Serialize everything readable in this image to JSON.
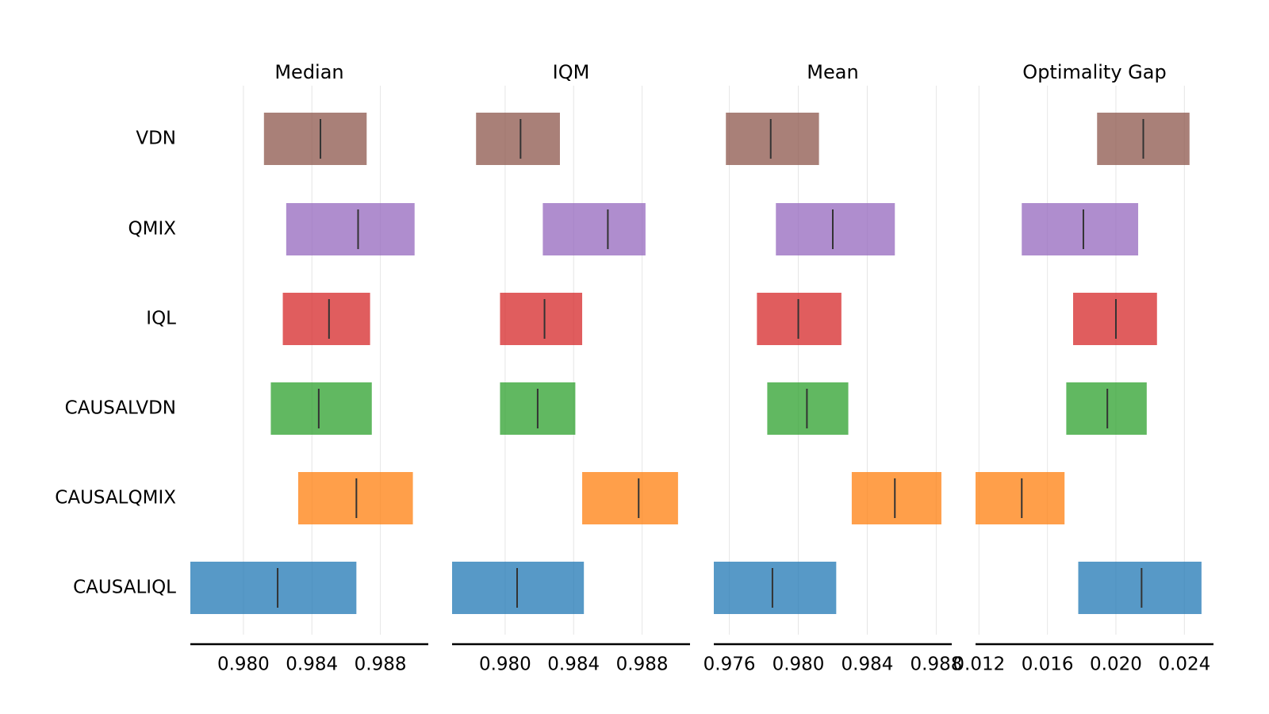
{
  "chart_data": {
    "type": "interval",
    "methods": [
      "VDN",
      "QMIX",
      "IQL",
      "CAUSALVDN",
      "CAUSALQMIX",
      "CAUSALIQL"
    ],
    "colors": {
      "VDN": "#8c564b",
      "QMIX": "#9467bd",
      "IQL": "#d62728",
      "CAUSALVDN": "#2ca02c",
      "CAUSALQMIX": "#ff7f0e",
      "CAUSALIQL": "#1f77b4"
    },
    "panels": [
      {
        "title": "Median",
        "xlim": [
          0.9769,
          0.9908
        ],
        "ticks": [
          "0.980",
          "0.984",
          "0.988"
        ],
        "intervals": [
          {
            "method": "VDN",
            "low": 0.9812,
            "high": 0.9872,
            "point": 0.9845
          },
          {
            "method": "QMIX",
            "low": 0.9825,
            "high": 0.99,
            "point": 0.9867
          },
          {
            "method": "IQL",
            "low": 0.9823,
            "high": 0.9874,
            "point": 0.985
          },
          {
            "method": "CAUSALVDN",
            "low": 0.9816,
            "high": 0.9875,
            "point": 0.9844
          },
          {
            "method": "CAUSALQMIX",
            "low": 0.9832,
            "high": 0.9899,
            "point": 0.9866
          },
          {
            "method": "CAUSALIQL",
            "low": 0.9769,
            "high": 0.9866,
            "point": 0.982
          }
        ]
      },
      {
        "title": "IQM",
        "xlim": [
          0.9769,
          0.9908
        ],
        "ticks": [
          "0.980",
          "0.984",
          "0.988"
        ],
        "intervals": [
          {
            "method": "VDN",
            "low": 0.9783,
            "high": 0.9832,
            "point": 0.9809
          },
          {
            "method": "QMIX",
            "low": 0.9822,
            "high": 0.9882,
            "point": 0.986
          },
          {
            "method": "IQL",
            "low": 0.9797,
            "high": 0.9845,
            "point": 0.9823
          },
          {
            "method": "CAUSALVDN",
            "low": 0.9797,
            "high": 0.9841,
            "point": 0.9819
          },
          {
            "method": "CAUSALQMIX",
            "low": 0.9845,
            "high": 0.9901,
            "point": 0.9878
          },
          {
            "method": "CAUSALIQL",
            "low": 0.9769,
            "high": 0.9846,
            "point": 0.9807
          }
        ]
      },
      {
        "title": "Mean",
        "xlim": [
          0.9751,
          0.9889
        ],
        "ticks": [
          "0.976",
          "0.980",
          "0.984",
          "0.988"
        ],
        "intervals": [
          {
            "method": "VDN",
            "low": 0.9758,
            "high": 0.9812,
            "point": 0.9784
          },
          {
            "method": "QMIX",
            "low": 0.9787,
            "high": 0.9856,
            "point": 0.982
          },
          {
            "method": "IQL",
            "low": 0.9776,
            "high": 0.9825,
            "point": 0.98
          },
          {
            "method": "CAUSALVDN",
            "low": 0.9782,
            "high": 0.9829,
            "point": 0.9805
          },
          {
            "method": "CAUSALQMIX",
            "low": 0.9831,
            "high": 0.9883,
            "point": 0.9856
          },
          {
            "method": "CAUSALIQL",
            "low": 0.9751,
            "high": 0.9822,
            "point": 0.9785
          }
        ]
      },
      {
        "title": "Optimality Gap",
        "xlim": [
          0.0118,
          0.0257
        ],
        "ticks": [
          "0.012",
          "0.016",
          "0.020",
          "0.024"
        ],
        "intervals": [
          {
            "method": "VDN",
            "low": 0.0189,
            "high": 0.0243,
            "point": 0.0216
          },
          {
            "method": "QMIX",
            "low": 0.0145,
            "high": 0.0213,
            "point": 0.0181
          },
          {
            "method": "IQL",
            "low": 0.0175,
            "high": 0.0224,
            "point": 0.02
          },
          {
            "method": "CAUSALVDN",
            "low": 0.0171,
            "high": 0.0218,
            "point": 0.0195
          },
          {
            "method": "CAUSALQMIX",
            "low": 0.0118,
            "high": 0.017,
            "point": 0.0145
          },
          {
            "method": "CAUSALIQL",
            "low": 0.0178,
            "high": 0.025,
            "point": 0.0215
          }
        ]
      }
    ]
  }
}
